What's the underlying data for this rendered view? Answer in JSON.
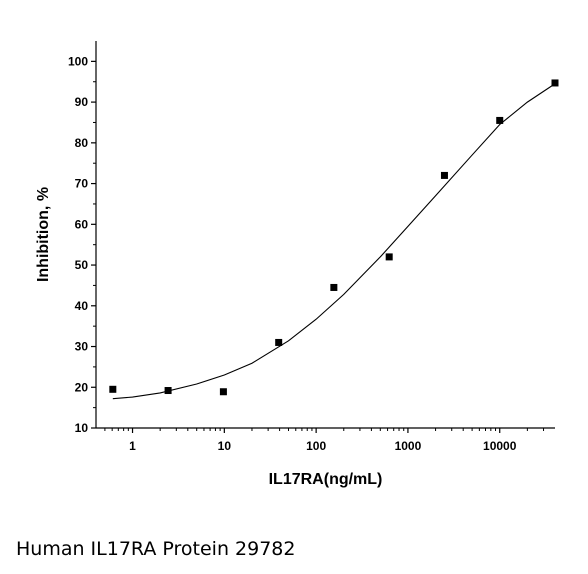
{
  "caption": "Human IL17RA Protein 29782",
  "chart_data": {
    "type": "scatter",
    "xlabel": "IL17RA(ng/mL)",
    "ylabel": "Inhibition, %",
    "xscale": "log",
    "xlim": [
      0.4,
      40000
    ],
    "ylim": [
      10,
      105
    ],
    "x_ticks": [
      1,
      10,
      100,
      1000,
      10000
    ],
    "x_tick_labels": [
      "1",
      "10",
      "100",
      "1000",
      "10000"
    ],
    "y_ticks": [
      10,
      20,
      30,
      40,
      50,
      60,
      70,
      80,
      90,
      100
    ],
    "y_tick_labels": [
      "10",
      "20",
      "30",
      "40",
      "50",
      "60",
      "70",
      "80",
      "90",
      "100"
    ],
    "grid": false,
    "series": [
      {
        "x": [
          0.61,
          2.44,
          9.77,
          39.1,
          156,
          625,
          2500,
          10000,
          40000
        ],
        "y": [
          19.5,
          19.2,
          18.9,
          31.0,
          44.5,
          52.0,
          72.0,
          85.5,
          94.7
        ]
      }
    ],
    "fit_curve": {
      "x": [
        0.61,
        1,
        2,
        5,
        10,
        20,
        50,
        100,
        200,
        500,
        1000,
        2000,
        5000,
        10000,
        20000,
        40000
      ],
      "y": [
        17.2,
        17.6,
        18.6,
        20.8,
        23.0,
        25.9,
        31.4,
        36.7,
        42.8,
        52.0,
        59.5,
        67.0,
        77.0,
        84.5,
        90.0,
        94.5
      ]
    },
    "marker_color": "#000000",
    "line_color": "#000000"
  }
}
